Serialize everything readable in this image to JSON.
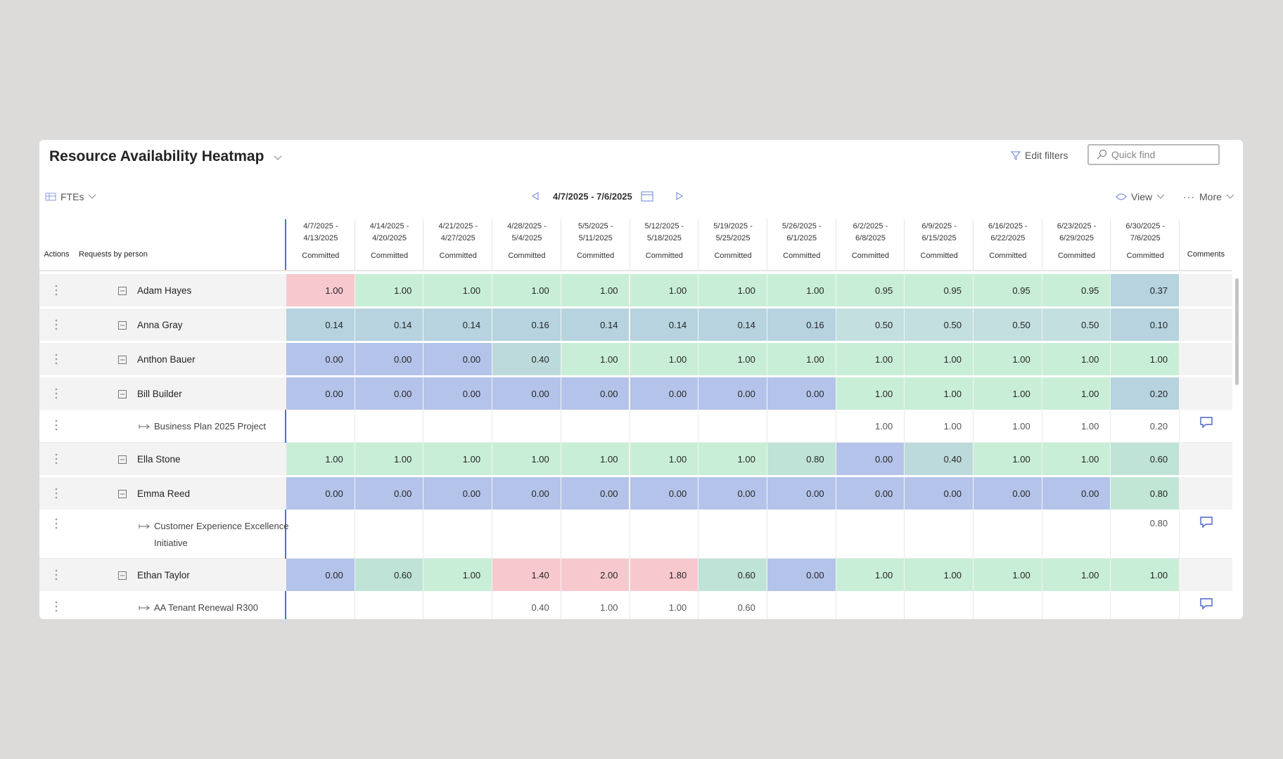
{
  "header": {
    "title": "Resource Availability Heatmap",
    "edit_filters": "Edit filters",
    "quick_find": "Quick find"
  },
  "toolbar": {
    "units": "FTEs",
    "date_range": "4/7/2025 - 7/6/2025",
    "view": "View",
    "more": "More"
  },
  "table": {
    "columns": {
      "actions": "Actions",
      "requests": "Requests by person",
      "comments": "Comments"
    },
    "weeks": [
      {
        "range": [
          "4/7/2025 -",
          "4/13/2025"
        ],
        "status": "Committed"
      },
      {
        "range": [
          "4/14/2025 -",
          "4/20/2025"
        ],
        "status": "Committed"
      },
      {
        "range": [
          "4/21/2025 -",
          "4/27/2025"
        ],
        "status": "Committed"
      },
      {
        "range": [
          "4/28/2025 -",
          "5/4/2025"
        ],
        "status": "Committed"
      },
      {
        "range": [
          "5/5/2025 -",
          "5/11/2025"
        ],
        "status": "Committed"
      },
      {
        "range": [
          "5/12/2025 -",
          "5/18/2025"
        ],
        "status": "Committed"
      },
      {
        "range": [
          "5/19/2025 -",
          "5/25/2025"
        ],
        "status": "Committed"
      },
      {
        "range": [
          "5/26/2025 -",
          "6/1/2025"
        ],
        "status": "Committed"
      },
      {
        "range": [
          "6/2/2025 -",
          "6/8/2025"
        ],
        "status": "Committed"
      },
      {
        "range": [
          "6/9/2025 -",
          "6/15/2025"
        ],
        "status": "Committed"
      },
      {
        "range": [
          "6/16/2025 -",
          "6/22/2025"
        ],
        "status": "Committed"
      },
      {
        "range": [
          "6/23/2025 -",
          "6/29/2025"
        ],
        "status": "Committed"
      },
      {
        "range": [
          "6/30/2025 -",
          "7/6/2025"
        ],
        "status": "Committed"
      }
    ],
    "rows": [
      {
        "name": "Adam Hayes",
        "values": [
          "1.00",
          "1.00",
          "1.00",
          "1.00",
          "1.00",
          "1.00",
          "1.00",
          "1.00",
          "0.95",
          "0.95",
          "0.95",
          "0.95",
          "0.37"
        ],
        "colors": [
          "#f7c9cf",
          "#c9eed7",
          "#c9eed7",
          "#c9eed7",
          "#c9eed7",
          "#c9eed7",
          "#c9eed7",
          "#c9eed7",
          "#c9eed7",
          "#c9eed7",
          "#c9eed7",
          "#c9eed7",
          "#b6d3df"
        ]
      },
      {
        "name": "Anna Gray",
        "values": [
          "0.14",
          "0.14",
          "0.14",
          "0.16",
          "0.14",
          "0.14",
          "0.14",
          "0.16",
          "0.50",
          "0.50",
          "0.50",
          "0.50",
          "0.10"
        ],
        "colors": [
          "#b6d3df",
          "#b6d3df",
          "#b6d3df",
          "#b6d3df",
          "#b6d3df",
          "#b6d3df",
          "#b6d3df",
          "#b6d3df",
          "#c3dfdf",
          "#c3dfdf",
          "#c3dfdf",
          "#c3dfdf",
          "#b6d3df"
        ]
      },
      {
        "name": "Anthon Bauer",
        "values": [
          "0.00",
          "0.00",
          "0.00",
          "0.40",
          "1.00",
          "1.00",
          "1.00",
          "1.00",
          "1.00",
          "1.00",
          "1.00",
          "1.00",
          "1.00"
        ],
        "colors": [
          "#b4c3e9",
          "#b4c3e9",
          "#b4c3e9",
          "#bcdadb",
          "#c9eed7",
          "#c9eed7",
          "#c9eed7",
          "#c9eed7",
          "#c9eed7",
          "#c9eed7",
          "#c9eed7",
          "#c9eed7",
          "#c9eed7"
        ]
      },
      {
        "name": "Bill Builder",
        "values": [
          "0.00",
          "0.00",
          "0.00",
          "0.00",
          "0.00",
          "0.00",
          "0.00",
          "0.00",
          "1.00",
          "1.00",
          "1.00",
          "1.00",
          "0.20"
        ],
        "colors": [
          "#b4c3e9",
          "#b4c3e9",
          "#b4c3e9",
          "#b4c3e9",
          "#b4c3e9",
          "#b4c3e9",
          "#b4c3e9",
          "#b4c3e9",
          "#c9eed7",
          "#c9eed7",
          "#c9eed7",
          "#c9eed7",
          "#b6d3df"
        ],
        "projects": [
          {
            "name": "Business Plan 2025 Project",
            "values": [
              null,
              null,
              null,
              null,
              null,
              null,
              null,
              null,
              "1.00",
              "1.00",
              "1.00",
              "1.00",
              "0.20"
            ]
          }
        ]
      },
      {
        "name": "Ella Stone",
        "values": [
          "1.00",
          "1.00",
          "1.00",
          "1.00",
          "1.00",
          "1.00",
          "1.00",
          "0.80",
          "0.00",
          "0.40",
          "1.00",
          "1.00",
          "0.60"
        ],
        "colors": [
          "#c9eed7",
          "#c9eed7",
          "#c9eed7",
          "#c9eed7",
          "#c9eed7",
          "#c9eed7",
          "#c9eed7",
          "#bfe3d6",
          "#b4c3e9",
          "#bcdadb",
          "#c9eed7",
          "#c9eed7",
          "#bfe3d6"
        ]
      },
      {
        "name": "Emma Reed",
        "values": [
          "0.00",
          "0.00",
          "0.00",
          "0.00",
          "0.00",
          "0.00",
          "0.00",
          "0.00",
          "0.00",
          "0.00",
          "0.00",
          "0.00",
          "0.80"
        ],
        "colors": [
          "#b4c3e9",
          "#b4c3e9",
          "#b4c3e9",
          "#b4c3e9",
          "#b4c3e9",
          "#b4c3e9",
          "#b4c3e9",
          "#b4c3e9",
          "#b4c3e9",
          "#b4c3e9",
          "#b4c3e9",
          "#b4c3e9",
          "#c2e6d6"
        ],
        "projects": [
          {
            "name": "Customer Experience Excellence Initiative",
            "values": [
              null,
              null,
              null,
              null,
              null,
              null,
              null,
              null,
              null,
              null,
              null,
              null,
              "0.80"
            ]
          }
        ]
      },
      {
        "name": "Ethan Taylor",
        "values": [
          "0.00",
          "0.60",
          "1.00",
          "1.40",
          "2.00",
          "1.80",
          "0.60",
          "0.00",
          "1.00",
          "1.00",
          "1.00",
          "1.00",
          "1.00"
        ],
        "colors": [
          "#b4c3e9",
          "#bfe3d6",
          "#c9eed7",
          "#f7c9cf",
          "#f7c9cf",
          "#f7c9cf",
          "#bfe3d6",
          "#b4c3e9",
          "#c9eed7",
          "#c9eed7",
          "#c9eed7",
          "#c9eed7",
          "#c9eed7"
        ],
        "projects": [
          {
            "name": "AA Tenant Renewal R300",
            "values": [
              null,
              null,
              null,
              "0.40",
              "1.00",
              "1.00",
              "0.60",
              null,
              null,
              null,
              null,
              null,
              null
            ]
          }
        ]
      }
    ]
  }
}
